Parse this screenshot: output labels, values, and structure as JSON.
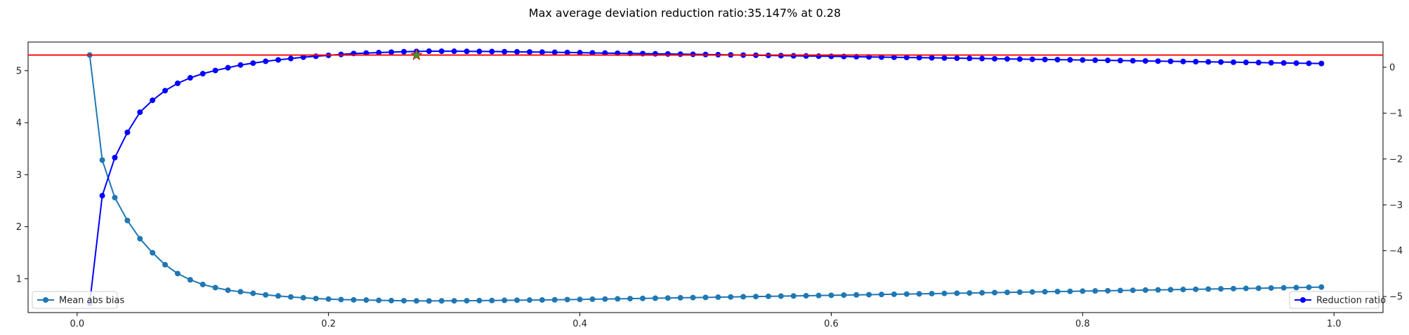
{
  "chart_data": {
    "type": "line",
    "title": "Max average deviation reduction ratio:35.147% at 0.28",
    "xlabel": "",
    "ylabel_left": "",
    "ylabel_right": "",
    "xlim": [
      -0.039,
      1.039
    ],
    "ylim_left": [
      0.35,
      5.55
    ],
    "ylim_right": [
      -5.35,
      0.55
    ],
    "x_ticks": [
      "0.0",
      "0.2",
      "0.4",
      "0.6",
      "0.8",
      "1.0"
    ],
    "y_left_ticks": [
      "1",
      "2",
      "3",
      "4",
      "5"
    ],
    "y_right_ticks": [
      "0",
      "−1",
      "−2",
      "−3",
      "−4",
      "−5"
    ],
    "x_tick_values": [
      0.0,
      0.2,
      0.4,
      0.6,
      0.8,
      1.0
    ],
    "y_left_tick_values": [
      1,
      2,
      3,
      4,
      5
    ],
    "y_right_tick_values": [
      0,
      -1,
      -2,
      -3,
      -4,
      -5
    ],
    "grid": false,
    "series": [
      {
        "name": "Mean abs bias",
        "axis": "left",
        "color": "#1f77b4",
        "marker": "circle",
        "x": [
          0.01,
          0.02,
          0.03,
          0.04,
          0.05,
          0.06,
          0.07,
          0.08,
          0.09,
          0.1,
          0.11,
          0.12,
          0.13,
          0.14,
          0.15,
          0.16,
          0.17,
          0.18,
          0.19,
          0.2,
          0.21,
          0.22,
          0.23,
          0.24,
          0.25,
          0.26,
          0.27,
          0.28,
          0.29,
          0.3,
          0.31,
          0.32,
          0.33,
          0.34,
          0.35,
          0.36,
          0.37,
          0.38,
          0.39,
          0.4,
          0.41,
          0.42,
          0.43,
          0.44,
          0.45,
          0.46,
          0.47,
          0.48,
          0.49,
          0.5,
          0.51,
          0.52,
          0.53,
          0.54,
          0.55,
          0.56,
          0.57,
          0.58,
          0.59,
          0.6,
          0.61,
          0.62,
          0.63,
          0.64,
          0.65,
          0.66,
          0.67,
          0.68,
          0.69,
          0.7,
          0.71,
          0.72,
          0.73,
          0.74,
          0.75,
          0.76,
          0.77,
          0.78,
          0.79,
          0.8,
          0.81,
          0.82,
          0.83,
          0.84,
          0.85,
          0.86,
          0.87,
          0.88,
          0.89,
          0.9,
          0.91,
          0.92,
          0.93,
          0.94,
          0.95,
          0.96,
          0.97,
          0.98,
          0.99
        ],
        "values": [
          5.3,
          3.28,
          2.56,
          2.12,
          1.77,
          1.5,
          1.27,
          1.1,
          0.98,
          0.89,
          0.83,
          0.78,
          0.75,
          0.72,
          0.69,
          0.67,
          0.65,
          0.635,
          0.62,
          0.61,
          0.6,
          0.595,
          0.59,
          0.585,
          0.58,
          0.578,
          0.575,
          0.574,
          0.575,
          0.576,
          0.578,
          0.58,
          0.582,
          0.585,
          0.588,
          0.59,
          0.593,
          0.596,
          0.6,
          0.603,
          0.607,
          0.61,
          0.614,
          0.618,
          0.622,
          0.626,
          0.63,
          0.634,
          0.638,
          0.642,
          0.646,
          0.65,
          0.654,
          0.658,
          0.662,
          0.666,
          0.67,
          0.674,
          0.678,
          0.682,
          0.686,
          0.69,
          0.694,
          0.698,
          0.702,
          0.706,
          0.71,
          0.714,
          0.718,
          0.722,
          0.726,
          0.73,
          0.734,
          0.738,
          0.742,
          0.746,
          0.75,
          0.754,
          0.758,
          0.762,
          0.766,
          0.77,
          0.774,
          0.778,
          0.782,
          0.786,
          0.79,
          0.794,
          0.798,
          0.802,
          0.806,
          0.81,
          0.814,
          0.818,
          0.822,
          0.826,
          0.83,
          0.835,
          0.84
        ]
      },
      {
        "name": "Reduction ratio",
        "axis": "right",
        "color": "#0000ff",
        "marker": "circle",
        "x": [
          0.01,
          0.02,
          0.03,
          0.04,
          0.05,
          0.06,
          0.07,
          0.08,
          0.09,
          0.1,
          0.11,
          0.12,
          0.13,
          0.14,
          0.15,
          0.16,
          0.17,
          0.18,
          0.19,
          0.2,
          0.21,
          0.22,
          0.23,
          0.24,
          0.25,
          0.26,
          0.27,
          0.28,
          0.29,
          0.3,
          0.31,
          0.32,
          0.33,
          0.34,
          0.35,
          0.36,
          0.37,
          0.38,
          0.39,
          0.4,
          0.41,
          0.42,
          0.43,
          0.44,
          0.45,
          0.46,
          0.47,
          0.48,
          0.49,
          0.5,
          0.51,
          0.52,
          0.53,
          0.54,
          0.55,
          0.56,
          0.57,
          0.58,
          0.59,
          0.6,
          0.61,
          0.62,
          0.63,
          0.64,
          0.65,
          0.66,
          0.67,
          0.68,
          0.69,
          0.7,
          0.71,
          0.72,
          0.73,
          0.74,
          0.75,
          0.76,
          0.77,
          0.78,
          0.79,
          0.8,
          0.81,
          0.82,
          0.83,
          0.84,
          0.85,
          0.86,
          0.87,
          0.88,
          0.89,
          0.9,
          0.91,
          0.92,
          0.93,
          0.94,
          0.95,
          0.96,
          0.97,
          0.98,
          0.99
        ],
        "values": [
          -5.15,
          -2.8,
          -1.97,
          -1.42,
          -0.98,
          -0.72,
          -0.51,
          -0.35,
          -0.23,
          -0.14,
          -0.07,
          -0.01,
          0.05,
          0.09,
          0.13,
          0.16,
          0.19,
          0.22,
          0.24,
          0.26,
          0.28,
          0.3,
          0.31,
          0.32,
          0.33,
          0.34,
          0.345,
          0.351,
          0.35,
          0.349,
          0.347,
          0.345,
          0.343,
          0.34,
          0.337,
          0.334,
          0.33,
          0.326,
          0.322,
          0.318,
          0.314,
          0.31,
          0.306,
          0.302,
          0.298,
          0.294,
          0.29,
          0.286,
          0.282,
          0.278,
          0.274,
          0.27,
          0.266,
          0.262,
          0.258,
          0.254,
          0.25,
          0.246,
          0.242,
          0.238,
          0.234,
          0.23,
          0.226,
          0.222,
          0.218,
          0.214,
          0.21,
          0.206,
          0.202,
          0.198,
          0.194,
          0.19,
          0.186,
          0.182,
          0.178,
          0.174,
          0.17,
          0.166,
          0.162,
          0.158,
          0.154,
          0.15,
          0.146,
          0.142,
          0.138,
          0.134,
          0.13,
          0.126,
          0.122,
          0.118,
          0.114,
          0.11,
          0.106,
          0.102,
          0.098,
          0.094,
          0.09,
          0.086,
          0.082
        ]
      }
    ],
    "hline": {
      "axis": "left",
      "y": 5.3,
      "color": "#ff0000"
    },
    "star": {
      "axis": "left",
      "x": 0.27,
      "y": 5.3,
      "color": "#2ca02c",
      "edge": "#ff0000"
    },
    "legends": [
      {
        "label": "Mean abs bias",
        "placement": "lower-left",
        "color": "#1f77b4"
      },
      {
        "label": "Reduction ratio",
        "placement": "lower-right",
        "color": "#0000ff"
      }
    ]
  }
}
